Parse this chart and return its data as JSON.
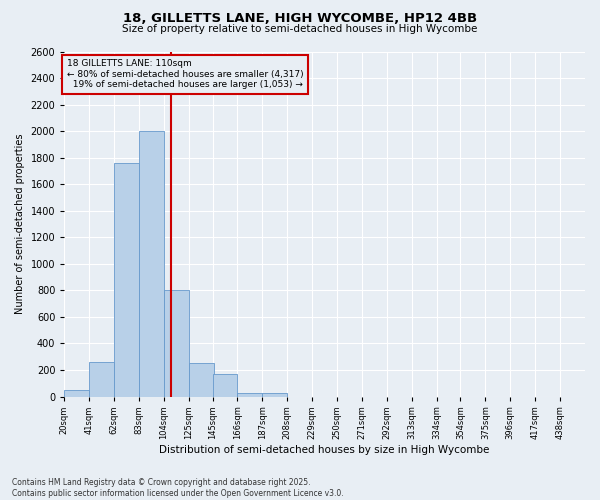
{
  "title": "18, GILLETTS LANE, HIGH WYCOMBE, HP12 4BB",
  "subtitle": "Size of property relative to semi-detached houses in High Wycombe",
  "xlabel": "Distribution of semi-detached houses by size in High Wycombe",
  "ylabel": "Number of semi-detached properties",
  "property_size": 110,
  "property_label": "18 GILLETTS LANE: 110sqm",
  "pct_smaller": 80,
  "count_smaller": "4,317",
  "pct_larger": 19,
  "count_larger": "1,053",
  "bin_labels": [
    "20sqm",
    "41sqm",
    "62sqm",
    "83sqm",
    "104sqm",
    "125sqm",
    "145sqm",
    "166sqm",
    "187sqm",
    "208sqm",
    "229sqm",
    "250sqm",
    "271sqm",
    "292sqm",
    "313sqm",
    "334sqm",
    "354sqm",
    "375sqm",
    "396sqm",
    "417sqm",
    "438sqm"
  ],
  "bin_left_edges": [
    20,
    41,
    62,
    83,
    104,
    125,
    145,
    166,
    187,
    208,
    229,
    250,
    271,
    292,
    313,
    334,
    354,
    375,
    396,
    417,
    438
  ],
  "bar_heights": [
    50,
    260,
    1760,
    2000,
    800,
    250,
    170,
    30,
    30,
    0,
    0,
    0,
    0,
    0,
    0,
    0,
    0,
    0,
    0,
    0,
    0
  ],
  "bar_color": "#b8d0e8",
  "bar_edge_color": "#6699cc",
  "property_line_color": "#cc0000",
  "annotation_box_color": "#cc0000",
  "background_color": "#e8eef4",
  "grid_color": "#ffffff",
  "ylim": [
    0,
    2600
  ],
  "yticks": [
    0,
    200,
    400,
    600,
    800,
    1000,
    1200,
    1400,
    1600,
    1800,
    2000,
    2200,
    2400,
    2600
  ],
  "footer_line1": "Contains HM Land Registry data © Crown copyright and database right 2025.",
  "footer_line2": "Contains public sector information licensed under the Open Government Licence v3.0."
}
